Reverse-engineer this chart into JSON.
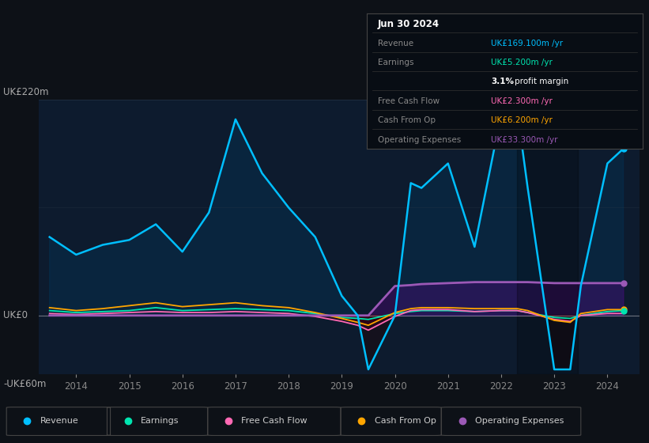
{
  "bg_color": "#0d1117",
  "plot_bg_color": "#0d1b2e",
  "title_date": "Jun 30 2024",
  "ylabel_top": "UK£220m",
  "ylabel_zero": "UK£0",
  "ylabel_bottom": "-UK£60m",
  "ylim": [
    -60,
    220
  ],
  "xlim": [
    2013.3,
    2024.6
  ],
  "years": [
    2013.5,
    2014.0,
    2014.5,
    2015.0,
    2015.5,
    2016.0,
    2016.5,
    2017.0,
    2017.5,
    2018.0,
    2018.5,
    2019.0,
    2019.3,
    2019.5,
    2020.0,
    2020.3,
    2020.5,
    2021.0,
    2021.5,
    2022.0,
    2022.3,
    2022.5,
    2023.0,
    2023.3,
    2023.5,
    2024.0,
    2024.3
  ],
  "revenue": [
    80,
    62,
    72,
    77,
    93,
    65,
    105,
    200,
    145,
    110,
    80,
    20,
    0,
    -55,
    0,
    135,
    130,
    155,
    70,
    205,
    210,
    130,
    -55,
    -55,
    30,
    155,
    170
  ],
  "earnings": [
    5,
    3,
    4,
    5,
    8,
    5,
    6,
    7,
    6,
    5,
    2,
    -2,
    -3,
    -4,
    2,
    4,
    5,
    5,
    4,
    5,
    5,
    3,
    -2,
    -3,
    0,
    4,
    5
  ],
  "free_cash_flow": [
    2,
    1,
    2,
    3,
    4,
    3,
    3,
    4,
    3,
    2,
    -1,
    -6,
    -10,
    -15,
    -1,
    5,
    6,
    6,
    4,
    5,
    5,
    3,
    -4,
    -6,
    0,
    2,
    2
  ],
  "cash_from_op": [
    8,
    5,
    7,
    10,
    13,
    9,
    11,
    13,
    10,
    8,
    3,
    -3,
    -7,
    -10,
    3,
    7,
    8,
    8,
    7,
    7,
    7,
    5,
    -5,
    -7,
    2,
    6,
    6
  ],
  "operating_expenses": [
    0,
    0,
    0,
    0,
    0,
    0,
    0,
    0,
    0,
    0,
    0,
    0,
    0,
    0,
    30,
    31,
    32,
    33,
    34,
    34,
    34,
    34,
    33,
    33,
    33,
    33,
    33
  ],
  "legend": [
    {
      "label": "Revenue",
      "color": "#00bfff"
    },
    {
      "label": "Earnings",
      "color": "#00e5b0"
    },
    {
      "label": "Free Cash Flow",
      "color": "#ff69b4"
    },
    {
      "label": "Cash From Op",
      "color": "#ffa500"
    },
    {
      "label": "Operating Expenses",
      "color": "#9b59b6"
    }
  ],
  "xticks": [
    2014,
    2015,
    2016,
    2017,
    2018,
    2019,
    2020,
    2021,
    2022,
    2023,
    2024
  ],
  "info_rows": [
    {
      "label": "Jun 30 2024",
      "value": "",
      "vcolor": "",
      "is_title": true
    },
    {
      "label": "Revenue",
      "value": "UK£169.100m /yr",
      "vcolor": "#00bfff",
      "is_title": false
    },
    {
      "label": "Earnings",
      "value": "UK£5.200m /yr",
      "vcolor": "#00e5b0",
      "is_title": false
    },
    {
      "label": "",
      "value": "3.1% profit margin",
      "vcolor": "margin",
      "is_title": false
    },
    {
      "label": "Free Cash Flow",
      "value": "UK£2.300m /yr",
      "vcolor": "#ff69b4",
      "is_title": false
    },
    {
      "label": "Cash From Op",
      "value": "UK£6.200m /yr",
      "vcolor": "#ffa500",
      "is_title": false
    },
    {
      "label": "Operating Expenses",
      "value": "UK£33.300m /yr",
      "vcolor": "#9b59b6",
      "is_title": false
    }
  ]
}
